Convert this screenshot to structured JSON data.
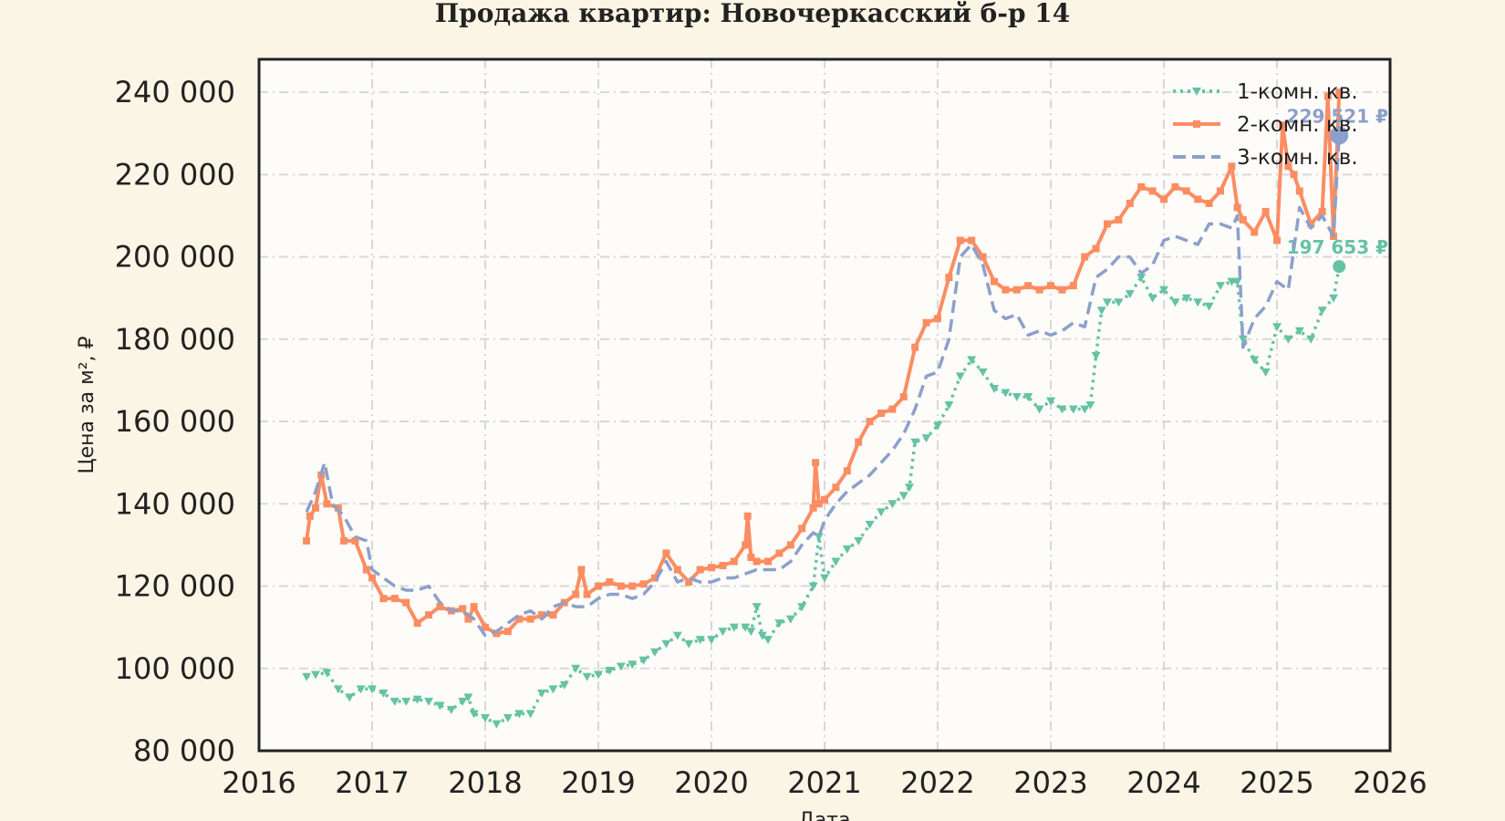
{
  "chart_data": {
    "type": "line",
    "title": "Продажа квартир: Новочеркасский б-р 14",
    "xlabel": "Дата",
    "ylabel": "Цена за м², ₽",
    "xlim": [
      2016,
      2026
    ],
    "ylim": [
      80000,
      248000
    ],
    "x_ticks": [
      2016,
      2017,
      2018,
      2019,
      2020,
      2021,
      2022,
      2023,
      2024,
      2025,
      2026
    ],
    "y_ticks": [
      80000,
      100000,
      120000,
      140000,
      160000,
      180000,
      200000,
      220000,
      240000
    ],
    "x_tick_labels": [
      "2016",
      "2017",
      "2018",
      "2019",
      "2020",
      "2021",
      "2022",
      "2023",
      "2024",
      "2025",
      "2026"
    ],
    "y_tick_labels": [
      "80 000",
      "100 000",
      "120 000",
      "140 000",
      "160 000",
      "180 000",
      "200 000",
      "220 000",
      "240 000"
    ],
    "grid": true,
    "legend_position": "top-right",
    "series": [
      {
        "name": "1-комн. кв.",
        "color": "#66c2a5",
        "style": "dotted",
        "marker": "triangle-down",
        "end_label": "197 653 ₽",
        "end_point": [
          2025.55,
          197653
        ],
        "x": [
          2016.42,
          2016.5,
          2016.6,
          2016.7,
          2016.8,
          2016.9,
          2017.0,
          2017.1,
          2017.2,
          2017.3,
          2017.4,
          2017.5,
          2017.6,
          2017.7,
          2017.8,
          2017.85,
          2017.9,
          2018.0,
          2018.1,
          2018.2,
          2018.3,
          2018.4,
          2018.5,
          2018.6,
          2018.7,
          2018.8,
          2018.9,
          2019.0,
          2019.1,
          2019.2,
          2019.3,
          2019.4,
          2019.5,
          2019.6,
          2019.7,
          2019.8,
          2019.9,
          2020.0,
          2020.1,
          2020.2,
          2020.3,
          2020.35,
          2020.4,
          2020.45,
          2020.5,
          2020.6,
          2020.7,
          2020.8,
          2020.9,
          2020.95,
          2021.0,
          2021.1,
          2021.2,
          2021.3,
          2021.4,
          2021.5,
          2021.6,
          2021.7,
          2021.75,
          2021.8,
          2021.9,
          2022.0,
          2022.1,
          2022.2,
          2022.3,
          2022.4,
          2022.5,
          2022.6,
          2022.7,
          2022.8,
          2022.9,
          2023.0,
          2023.1,
          2023.2,
          2023.3,
          2023.35,
          2023.4,
          2023.45,
          2023.5,
          2023.6,
          2023.7,
          2023.8,
          2023.9,
          2024.0,
          2024.1,
          2024.2,
          2024.3,
          2024.4,
          2024.5,
          2024.6,
          2024.65,
          2024.7,
          2024.8,
          2024.9,
          2025.0,
          2025.1,
          2025.2,
          2025.3,
          2025.4,
          2025.5,
          2025.55
        ],
        "y": [
          98000,
          98500,
          99000,
          95000,
          93000,
          95000,
          95000,
          94000,
          92000,
          92000,
          92500,
          92000,
          91000,
          90000,
          92000,
          93000,
          89000,
          88000,
          86500,
          88000,
          89000,
          89000,
          94000,
          95000,
          96000,
          100000,
          98000,
          98500,
          99500,
          100500,
          101000,
          102000,
          104000,
          106000,
          108000,
          106000,
          107000,
          107000,
          109000,
          110000,
          110000,
          109000,
          115000,
          108000,
          107000,
          111000,
          112000,
          115000,
          120000,
          132000,
          122000,
          126000,
          129000,
          131000,
          135000,
          138000,
          140000,
          142000,
          144000,
          155000,
          156000,
          159000,
          164000,
          171000,
          175000,
          172000,
          168000,
          167000,
          166000,
          166000,
          163000,
          165000,
          163000,
          163000,
          163000,
          164000,
          176000,
          187000,
          189000,
          189000,
          191000,
          195000,
          190000,
          192000,
          189000,
          190000,
          189000,
          188000,
          193000,
          194000,
          194000,
          180000,
          175000,
          172000,
          183000,
          180000,
          182000,
          180000,
          187000,
          190000,
          197653
        ]
      },
      {
        "name": "2-комн. кв.",
        "color": "#fc8d62",
        "style": "solid",
        "marker": "square",
        "end_label": "",
        "end_point": null,
        "x": [
          2016.42,
          2016.45,
          2016.5,
          2016.55,
          2016.6,
          2016.7,
          2016.75,
          2016.85,
          2016.95,
          2017.0,
          2017.1,
          2017.2,
          2017.3,
          2017.4,
          2017.5,
          2017.6,
          2017.7,
          2017.8,
          2017.85,
          2017.9,
          2018.0,
          2018.1,
          2018.2,
          2018.3,
          2018.4,
          2018.5,
          2018.6,
          2018.7,
          2018.8,
          2018.85,
          2018.9,
          2019.0,
          2019.1,
          2019.2,
          2019.3,
          2019.4,
          2019.5,
          2019.6,
          2019.7,
          2019.8,
          2019.9,
          2020.0,
          2020.1,
          2020.2,
          2020.3,
          2020.32,
          2020.35,
          2020.4,
          2020.5,
          2020.6,
          2020.7,
          2020.8,
          2020.9,
          2020.92,
          2020.95,
          2021.0,
          2021.1,
          2021.2,
          2021.3,
          2021.4,
          2021.5,
          2021.6,
          2021.7,
          2021.8,
          2021.9,
          2022.0,
          2022.1,
          2022.2,
          2022.3,
          2022.4,
          2022.5,
          2022.6,
          2022.7,
          2022.8,
          2022.9,
          2023.0,
          2023.1,
          2023.2,
          2023.3,
          2023.4,
          2023.5,
          2023.6,
          2023.7,
          2023.8,
          2023.9,
          2024.0,
          2024.1,
          2024.2,
          2024.3,
          2024.4,
          2024.5,
          2024.6,
          2024.65,
          2024.7,
          2024.8,
          2024.9,
          2025.0,
          2025.05,
          2025.1,
          2025.15,
          2025.2,
          2025.3,
          2025.4,
          2025.45,
          2025.5,
          2025.55
        ],
        "y": [
          131000,
          137000,
          139000,
          147000,
          140000,
          139000,
          131000,
          131000,
          124000,
          122000,
          117000,
          117000,
          116000,
          111000,
          113000,
          115000,
          114000,
          114500,
          112000,
          115000,
          110000,
          108500,
          109000,
          112000,
          112000,
          113000,
          113000,
          116000,
          118000,
          124000,
          118000,
          120000,
          121000,
          120000,
          120000,
          120500,
          122000,
          128000,
          124000,
          121000,
          124000,
          124500,
          125000,
          126000,
          130000,
          137000,
          127000,
          126000,
          126000,
          128000,
          130000,
          134000,
          139000,
          150000,
          140000,
          141000,
          144000,
          148000,
          155000,
          160000,
          162000,
          163000,
          166000,
          178000,
          184000,
          185000,
          195000,
          204000,
          204000,
          200000,
          194000,
          192000,
          192000,
          193000,
          192000,
          193000,
          192000,
          193000,
          200000,
          202000,
          208000,
          209000,
          213000,
          217000,
          216000,
          214000,
          217000,
          216000,
          214000,
          213000,
          216000,
          222000,
          212000,
          209000,
          206000,
          211000,
          204000,
          232000,
          222000,
          220000,
          216000,
          208000,
          211000,
          239000,
          205000,
          240000
        ]
      },
      {
        "name": "3-комн. кв.",
        "color": "#8da0cb",
        "style": "dashed",
        "marker": "none",
        "end_label": "229 521 ₽",
        "end_point": [
          2025.55,
          229521
        ],
        "x": [
          2016.42,
          2016.5,
          2016.58,
          2016.65,
          2016.75,
          2016.85,
          2016.95,
          2017.0,
          2017.1,
          2017.2,
          2017.3,
          2017.4,
          2017.5,
          2017.6,
          2017.7,
          2017.8,
          2017.9,
          2018.0,
          2018.1,
          2018.2,
          2018.3,
          2018.4,
          2018.5,
          2018.6,
          2018.7,
          2018.8,
          2018.9,
          2019.0,
          2019.1,
          2019.2,
          2019.3,
          2019.4,
          2019.5,
          2019.6,
          2019.7,
          2019.8,
          2019.9,
          2020.0,
          2020.1,
          2020.2,
          2020.3,
          2020.4,
          2020.5,
          2020.6,
          2020.7,
          2020.8,
          2020.9,
          2020.95,
          2021.0,
          2021.1,
          2021.2,
          2021.3,
          2021.4,
          2021.5,
          2021.6,
          2021.7,
          2021.8,
          2021.9,
          2022.0,
          2022.1,
          2022.2,
          2022.3,
          2022.4,
          2022.5,
          2022.6,
          2022.7,
          2022.8,
          2022.9,
          2023.0,
          2023.1,
          2023.2,
          2023.3,
          2023.4,
          2023.5,
          2023.6,
          2023.7,
          2023.8,
          2023.9,
          2024.0,
          2024.1,
          2024.2,
          2024.3,
          2024.4,
          2024.5,
          2024.6,
          2024.65,
          2024.7,
          2024.8,
          2024.9,
          2025.0,
          2025.1,
          2025.2,
          2025.3,
          2025.4,
          2025.5,
          2025.55
        ],
        "y": [
          138000,
          143000,
          150000,
          140000,
          137000,
          132000,
          131000,
          124000,
          122000,
          120000,
          119000,
          119000,
          120000,
          116000,
          114000,
          114000,
          112000,
          108000,
          109000,
          111000,
          113000,
          114000,
          112000,
          115000,
          116000,
          115000,
          115000,
          117000,
          118000,
          118000,
          117000,
          118000,
          121000,
          126000,
          121000,
          122000,
          121000,
          121000,
          122000,
          122000,
          123000,
          124000,
          124000,
          124000,
          126000,
          130000,
          133000,
          132000,
          136000,
          140000,
          143000,
          145000,
          147000,
          150000,
          153000,
          157000,
          163000,
          171000,
          172000,
          180000,
          200000,
          203000,
          198000,
          187000,
          185000,
          186000,
          181000,
          182000,
          181000,
          182000,
          184000,
          183000,
          195000,
          197000,
          200000,
          200000,
          196000,
          198000,
          204000,
          205000,
          204000,
          203000,
          208000,
          208000,
          207000,
          210000,
          178000,
          185000,
          188000,
          194000,
          192000,
          212000,
          207000,
          210000,
          205000,
          229521
        ]
      }
    ]
  }
}
